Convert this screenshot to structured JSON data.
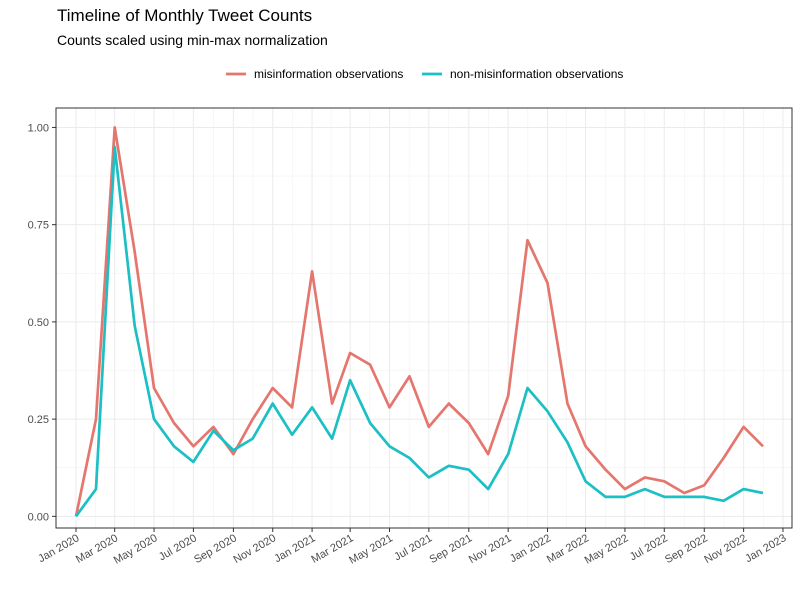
{
  "chart_data": {
    "type": "line",
    "title": "Timeline of Monthly Tweet Counts",
    "subtitle": "Counts scaled using min-max normalization",
    "xlabel": "",
    "ylabel": "",
    "legend_position": "top",
    "grid": true,
    "ylim": [
      -0.03,
      1.05
    ],
    "x_range": [
      "2019-12-01",
      "2023-01-15"
    ],
    "y_ticks": [
      "0.00",
      "0.25",
      "0.50",
      "0.75",
      "1.00"
    ],
    "y_tick_values": [
      0,
      0.25,
      0.5,
      0.75,
      1.0
    ],
    "x_ticks": [
      {
        "date": "2020-01",
        "label": "Jan 2020"
      },
      {
        "date": "2020-03",
        "label": "Mar 2020"
      },
      {
        "date": "2020-05",
        "label": "May 2020"
      },
      {
        "date": "2020-07",
        "label": "Jul 2020"
      },
      {
        "date": "2020-09",
        "label": "Sep 2020"
      },
      {
        "date": "2020-11",
        "label": "Nov 2020"
      },
      {
        "date": "2021-01",
        "label": "Jan 2021"
      },
      {
        "date": "2021-03",
        "label": "Mar 2021"
      },
      {
        "date": "2021-05",
        "label": "May 2021"
      },
      {
        "date": "2021-07",
        "label": "Jul 2021"
      },
      {
        "date": "2021-09",
        "label": "Sep 2021"
      },
      {
        "date": "2021-11",
        "label": "Nov 2021"
      },
      {
        "date": "2022-01",
        "label": "Jan 2022"
      },
      {
        "date": "2022-03",
        "label": "Mar 2022"
      },
      {
        "date": "2022-05",
        "label": "May 2022"
      },
      {
        "date": "2022-07",
        "label": "Jul 2022"
      },
      {
        "date": "2022-09",
        "label": "Sep 2022"
      },
      {
        "date": "2022-11",
        "label": "Nov 2022"
      },
      {
        "date": "2023-01",
        "label": "Jan 2023"
      }
    ],
    "x": [
      "2020-01",
      "2020-02",
      "2020-03",
      "2020-04",
      "2020-05",
      "2020-06",
      "2020-07",
      "2020-08",
      "2020-09",
      "2020-10",
      "2020-11",
      "2020-12",
      "2021-01",
      "2021-02",
      "2021-03",
      "2021-04",
      "2021-05",
      "2021-06",
      "2021-07",
      "2021-08",
      "2021-09",
      "2021-10",
      "2021-11",
      "2021-12",
      "2022-01",
      "2022-02",
      "2022-03",
      "2022-04",
      "2022-05",
      "2022-06",
      "2022-07",
      "2022-08",
      "2022-09",
      "2022-10",
      "2022-11",
      "2022-12"
    ],
    "series": [
      {
        "name": "misinformation observations",
        "color": "#E5766E",
        "values": [
          0.0,
          0.25,
          1.0,
          0.68,
          0.33,
          0.24,
          0.18,
          0.23,
          0.16,
          0.25,
          0.33,
          0.28,
          0.63,
          0.29,
          0.42,
          0.39,
          0.28,
          0.36,
          0.23,
          0.29,
          0.24,
          0.16,
          0.31,
          0.71,
          0.6,
          0.29,
          0.18,
          0.12,
          0.07,
          0.1,
          0.09,
          0.06,
          0.08,
          0.15,
          0.23,
          0.18
        ]
      },
      {
        "name": "non-misinformation observations",
        "color": "#1BBFC4",
        "values": [
          0.0,
          0.07,
          0.95,
          0.49,
          0.25,
          0.18,
          0.14,
          0.22,
          0.17,
          0.2,
          0.29,
          0.21,
          0.28,
          0.2,
          0.35,
          0.24,
          0.18,
          0.15,
          0.1,
          0.13,
          0.12,
          0.07,
          0.16,
          0.33,
          0.27,
          0.19,
          0.09,
          0.05,
          0.05,
          0.07,
          0.05,
          0.05,
          0.05,
          0.04,
          0.07,
          0.06
        ]
      }
    ]
  }
}
